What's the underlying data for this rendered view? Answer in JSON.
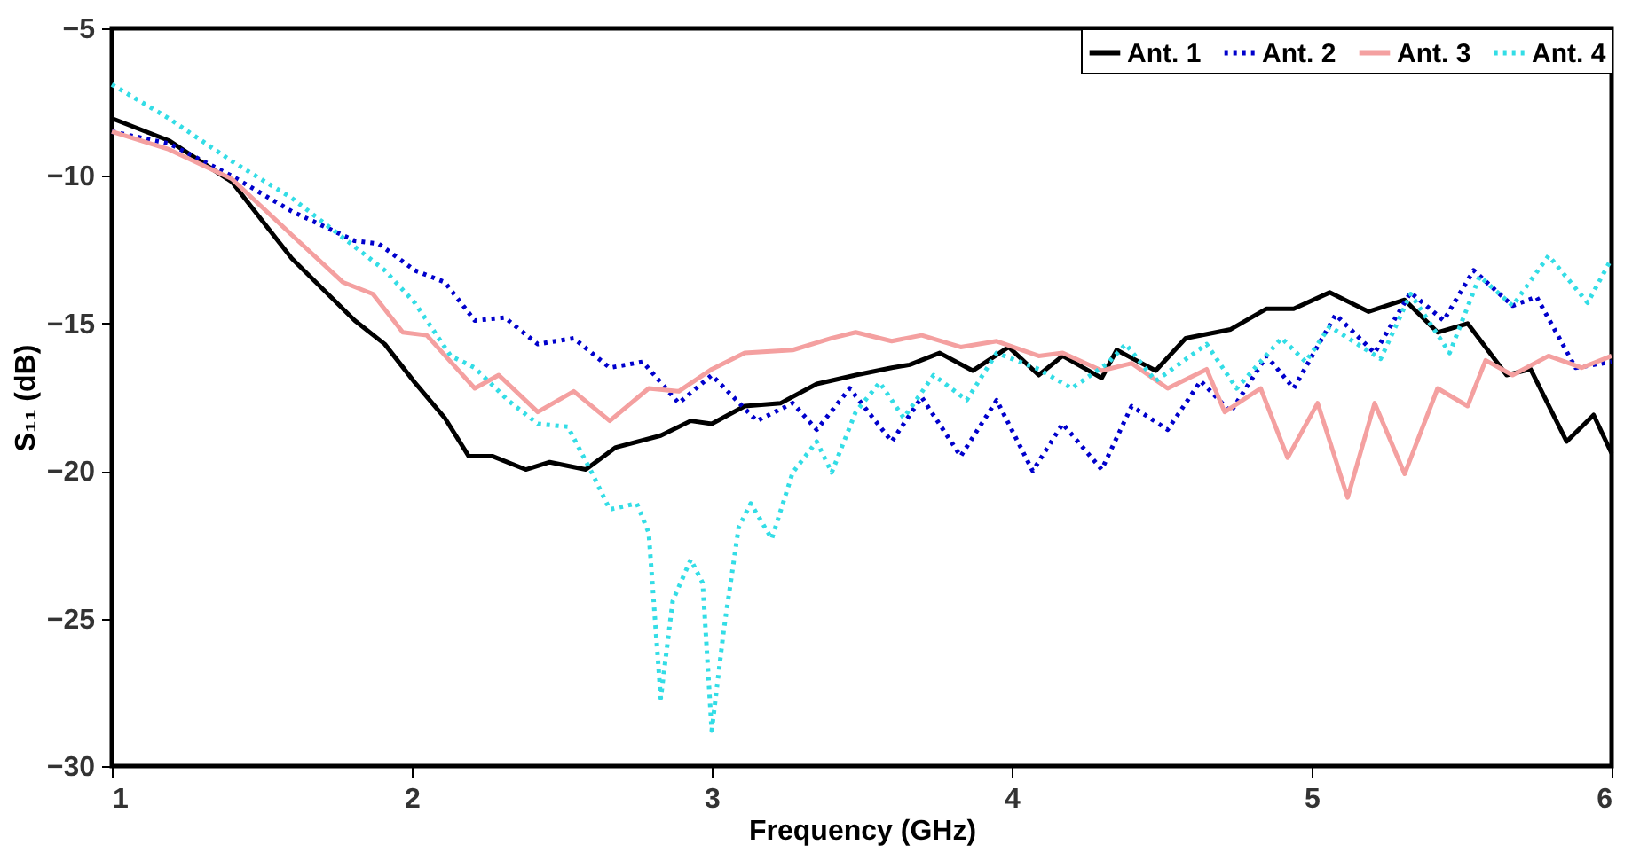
{
  "chart_data": {
    "type": "line",
    "xlabel": "Frequency (GHz)",
    "ylabel": "S₁₁ (dB)",
    "xlim": [
      1,
      6
    ],
    "ylim": [
      -30,
      -5
    ],
    "xticks": [
      1,
      2,
      3,
      4,
      5,
      6
    ],
    "yticks": [
      -30,
      -25,
      -20,
      -15,
      -10,
      -5
    ],
    "grid": false,
    "legend": "top right",
    "marker": "none",
    "series": [
      {
        "name": "Ant. 1",
        "color": "#000000",
        "line_style": "solid",
        "x": [
          1.0,
          1.19,
          1.4,
          1.6,
          1.81,
          1.91,
          2.01,
          2.11,
          2.19,
          2.27,
          2.38,
          2.46,
          2.58,
          2.68,
          2.83,
          2.93,
          3.0,
          3.11,
          3.23,
          3.35,
          3.48,
          3.6,
          3.66,
          3.76,
          3.87,
          3.99,
          4.09,
          4.17,
          4.3,
          4.35,
          4.48,
          4.58,
          4.73,
          4.85,
          4.94,
          5.06,
          5.19,
          5.31,
          5.42,
          5.52,
          5.65,
          5.73,
          5.85,
          5.94,
          6.0
        ],
        "values": [
          -8.05,
          -8.8,
          -10.2,
          -12.8,
          -14.9,
          -15.7,
          -17.0,
          -18.2,
          -19.5,
          -19.5,
          -19.95,
          -19.7,
          -19.95,
          -19.2,
          -18.8,
          -18.3,
          -18.4,
          -17.8,
          -17.7,
          -17.05,
          -16.75,
          -16.5,
          -16.4,
          -16.0,
          -16.6,
          -15.8,
          -16.75,
          -16.1,
          -16.85,
          -15.9,
          -16.6,
          -15.5,
          -15.2,
          -14.5,
          -14.5,
          -13.95,
          -14.6,
          -14.2,
          -15.3,
          -15.0,
          -16.75,
          -16.55,
          -19.0,
          -18.1,
          -19.4
        ]
      },
      {
        "name": "Ant. 2",
        "color": "#0000cc",
        "line_style": "dotted",
        "x": [
          1.0,
          1.19,
          1.4,
          1.6,
          1.81,
          1.89,
          2.01,
          2.11,
          2.21,
          2.31,
          2.42,
          2.54,
          2.66,
          2.77,
          2.89,
          3.0,
          3.15,
          3.27,
          3.35,
          3.46,
          3.6,
          3.7,
          3.83,
          3.95,
          4.07,
          4.17,
          4.3,
          4.4,
          4.52,
          4.63,
          4.73,
          4.85,
          4.94,
          5.08,
          5.21,
          5.33,
          5.44,
          5.54,
          5.67,
          5.75,
          5.88,
          6.0
        ],
        "values": [
          -8.5,
          -8.9,
          -10.0,
          -11.2,
          -12.2,
          -12.3,
          -13.2,
          -13.6,
          -14.9,
          -14.8,
          -15.7,
          -15.5,
          -16.5,
          -16.3,
          -17.7,
          -16.75,
          -18.3,
          -17.7,
          -18.6,
          -17.2,
          -19.0,
          -17.5,
          -19.5,
          -17.6,
          -20.0,
          -18.4,
          -19.95,
          -17.8,
          -18.6,
          -16.95,
          -18.0,
          -16.1,
          -17.2,
          -14.7,
          -16.0,
          -13.95,
          -14.9,
          -13.2,
          -14.4,
          -14.1,
          -16.5,
          -16.3
        ]
      },
      {
        "name": "Ant. 3",
        "color": "#f4a0a0",
        "line_style": "solid",
        "x": [
          1.0,
          1.19,
          1.4,
          1.6,
          1.77,
          1.87,
          1.97,
          2.05,
          2.13,
          2.21,
          2.29,
          2.42,
          2.54,
          2.66,
          2.79,
          2.89,
          3.0,
          3.11,
          3.27,
          3.4,
          3.48,
          3.6,
          3.7,
          3.83,
          3.95,
          4.09,
          4.17,
          4.3,
          4.4,
          4.52,
          4.65,
          4.71,
          4.83,
          4.92,
          5.02,
          5.12,
          5.21,
          5.31,
          5.42,
          5.52,
          5.58,
          5.67,
          5.79,
          5.9,
          6.0
        ],
        "values": [
          -8.5,
          -9.1,
          -10.1,
          -12.0,
          -13.6,
          -14.0,
          -15.3,
          -15.4,
          -16.3,
          -17.2,
          -16.75,
          -18.0,
          -17.3,
          -18.3,
          -17.2,
          -17.3,
          -16.55,
          -16.0,
          -15.9,
          -15.5,
          -15.3,
          -15.6,
          -15.4,
          -15.8,
          -15.6,
          -16.1,
          -16.0,
          -16.6,
          -16.35,
          -17.2,
          -16.55,
          -18.0,
          -17.2,
          -19.55,
          -17.7,
          -20.9,
          -17.7,
          -20.1,
          -17.2,
          -17.8,
          -16.25,
          -16.75,
          -16.1,
          -16.5,
          -16.1
        ]
      },
      {
        "name": "Ant. 4",
        "color": "#33dde6",
        "line_style": "dotted",
        "x": [
          1.0,
          1.19,
          1.4,
          1.6,
          1.81,
          1.91,
          2.01,
          2.13,
          2.21,
          2.32,
          2.42,
          2.52,
          2.6,
          2.66,
          2.75,
          2.79,
          2.83,
          2.87,
          2.93,
          2.97,
          3.0,
          3.04,
          3.09,
          3.13,
          3.2,
          3.27,
          3.35,
          3.4,
          3.48,
          3.56,
          3.64,
          3.74,
          3.85,
          3.95,
          4.09,
          4.2,
          4.32,
          4.38,
          4.48,
          4.65,
          4.75,
          4.9,
          4.98,
          5.06,
          5.23,
          5.33,
          5.46,
          5.56,
          5.67,
          5.79,
          5.92,
          6.0
        ],
        "values": [
          -6.9,
          -8.05,
          -9.5,
          -10.75,
          -12.4,
          -13.2,
          -14.3,
          -16.1,
          -16.5,
          -17.6,
          -18.4,
          -18.5,
          -20.05,
          -21.3,
          -21.1,
          -22.1,
          -27.7,
          -24.4,
          -23.0,
          -23.8,
          -28.8,
          -25.4,
          -21.9,
          -21.1,
          -22.3,
          -20.05,
          -19.0,
          -20.05,
          -18.0,
          -17.0,
          -18.2,
          -16.75,
          -17.6,
          -16.0,
          -16.55,
          -17.2,
          -16.35,
          -15.7,
          -16.95,
          -15.7,
          -17.2,
          -15.5,
          -16.3,
          -15.1,
          -16.2,
          -14.0,
          -16.0,
          -13.4,
          -14.4,
          -12.7,
          -14.3,
          -12.8
        ]
      }
    ]
  }
}
